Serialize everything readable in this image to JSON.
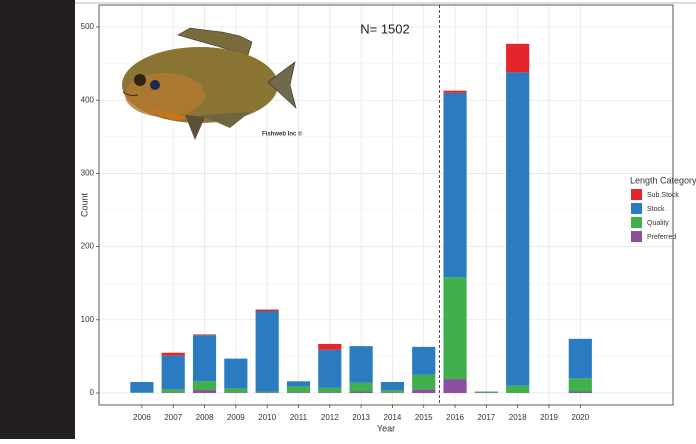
{
  "chart_data": {
    "type": "stacked_bar",
    "annotation": "N= 1502",
    "image_credit": "Fishweb Inc ©",
    "x_label": "Year",
    "y_label": "Count",
    "legend_title": "Length Category",
    "legend": "right",
    "x": [
      2006,
      2007,
      2008,
      2009,
      2010,
      2011,
      2012,
      2013,
      2014,
      2015,
      2016,
      2017,
      2018,
      2019,
      2020
    ],
    "xlim": [
      2004.63,
      2022.96
    ],
    "xticks": [
      2006,
      2007,
      2008,
      2009,
      2010,
      2011,
      2012,
      2013,
      2014,
      2015,
      2016,
      2017,
      2018,
      2019,
      2020
    ],
    "ylim": [
      -16.4,
      530
    ],
    "yticks": [
      0,
      100,
      200,
      300,
      400,
      500
    ],
    "grid": true,
    "vline": 2015.5,
    "series": [
      {
        "name": "Sub.Stock",
        "color": "#e3262b",
        "values": [
          0,
          4,
          1,
          0,
          2,
          0,
          8,
          0,
          0,
          0,
          3,
          0,
          39,
          0,
          0
        ]
      },
      {
        "name": "Stock",
        "color": "#2a7bbf",
        "values": [
          14,
          46,
          63,
          41,
          110,
          7,
          52,
          50,
          11,
          38,
          252,
          0,
          428,
          0,
          54
        ]
      },
      {
        "name": "Quality",
        "color": "#3fb04b",
        "values": [
          1,
          4,
          12,
          5,
          1,
          8,
          6,
          12,
          3,
          20,
          139,
          1,
          10,
          0,
          18
        ]
      },
      {
        "name": "Preferred",
        "color": "#8c4f9e",
        "values": [
          0,
          1,
          4,
          1,
          1,
          1,
          1,
          2,
          1,
          5,
          19,
          1,
          0,
          0,
          2
        ]
      }
    ]
  }
}
